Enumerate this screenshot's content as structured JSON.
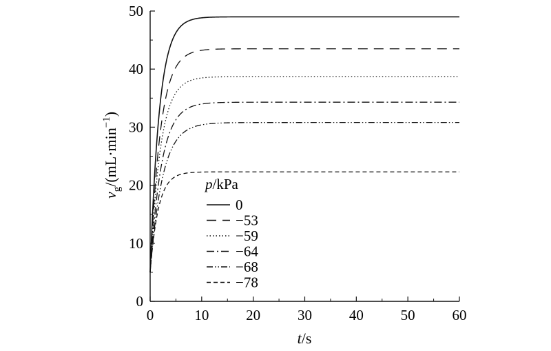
{
  "chart_data": {
    "type": "line",
    "x_label_var": "t",
    "x_label_unit": "/s",
    "y_label_var": "v",
    "y_label_sub": "g",
    "y_label_unit": "/(mL·min",
    "y_label_sup": "−1",
    "y_label_close": ")",
    "xlim": [
      0,
      60
    ],
    "ylim": [
      0,
      50
    ],
    "x_ticks": [
      "0",
      "10",
      "20",
      "30",
      "40",
      "50",
      "60"
    ],
    "y_ticks": [
      "0",
      "10",
      "20",
      "30",
      "40",
      "50"
    ],
    "grid": false,
    "legend_title_var": "p",
    "legend_title_unit": "/kPa",
    "legend_placement": "lower-center",
    "series": [
      {
        "name": "0",
        "style": "solid",
        "final": 49.0,
        "y0": 5,
        "tau": 1.8
      },
      {
        "name": "−53",
        "style": "dashed",
        "final": 43.5,
        "y0": 5,
        "tau": 2.0
      },
      {
        "name": "−59",
        "style": "dotted",
        "final": 38.7,
        "y0": 5,
        "tau": 2.0
      },
      {
        "name": "−64",
        "style": "dash-dot",
        "final": 34.3,
        "y0": 5,
        "tau": 2.2
      },
      {
        "name": "−68",
        "style": "dash-dot-dot",
        "final": 30.8,
        "y0": 5,
        "tau": 2.4
      },
      {
        "name": "−78",
        "style": "short-dashed",
        "final": 22.3,
        "y0": 5,
        "tau": 1.6
      }
    ]
  }
}
